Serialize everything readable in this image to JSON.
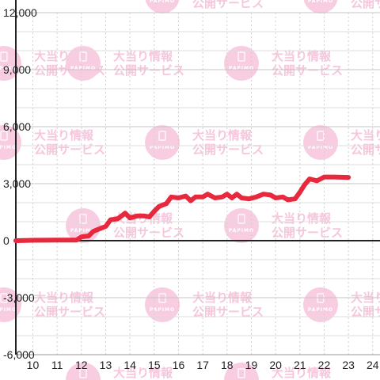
{
  "chart_data": {
    "type": "line",
    "title": "",
    "xlabel": "",
    "ylabel": "",
    "xlim": [
      9.3,
      24.3
    ],
    "ylim": [
      -6000,
      12000
    ],
    "x_ticks": [
      "10",
      "11",
      "12",
      "13",
      "14",
      "15",
      "16",
      "17",
      "18",
      "19",
      "20",
      "21",
      "22",
      "23",
      "24"
    ],
    "y_ticks": [
      "12,000",
      "9,000",
      "6,000",
      "3,000",
      "0",
      "-3,000",
      "-6,000"
    ],
    "grid": true,
    "colors": {
      "line": "#e8283c",
      "grid": "#d8d8d8",
      "axis": "#222222",
      "watermark": "#f9cde1"
    },
    "watermark": {
      "name": "PAPIMO",
      "line1": "大当り情報",
      "line2": "公開サービス",
      "sub": "PAPIMO"
    },
    "series": [
      {
        "values": [
          [
            9.3,
            0
          ],
          [
            10.0,
            20
          ],
          [
            11.0,
            30
          ],
          [
            11.8,
            30
          ],
          [
            12.0,
            200
          ],
          [
            12.3,
            250
          ],
          [
            12.5,
            500
          ],
          [
            12.8,
            650
          ],
          [
            13.0,
            750
          ],
          [
            13.2,
            1100
          ],
          [
            13.5,
            1150
          ],
          [
            13.8,
            1450
          ],
          [
            14.0,
            1200
          ],
          [
            14.3,
            1300
          ],
          [
            14.6,
            1300
          ],
          [
            14.8,
            1250
          ],
          [
            15.0,
            1550
          ],
          [
            15.2,
            1800
          ],
          [
            15.5,
            1950
          ],
          [
            15.7,
            2300
          ],
          [
            16.0,
            2250
          ],
          [
            16.3,
            2350
          ],
          [
            16.5,
            2100
          ],
          [
            16.7,
            2300
          ],
          [
            17.0,
            2300
          ],
          [
            17.2,
            2450
          ],
          [
            17.5,
            2250
          ],
          [
            17.8,
            2300
          ],
          [
            18.0,
            2450
          ],
          [
            18.2,
            2250
          ],
          [
            18.4,
            2450
          ],
          [
            18.6,
            2250
          ],
          [
            18.9,
            2200
          ],
          [
            19.2,
            2300
          ],
          [
            19.5,
            2450
          ],
          [
            19.8,
            2400
          ],
          [
            20.0,
            2250
          ],
          [
            20.3,
            2300
          ],
          [
            20.5,
            2150
          ],
          [
            20.8,
            2200
          ],
          [
            21.0,
            2550
          ],
          [
            21.2,
            2950
          ],
          [
            21.4,
            3250
          ],
          [
            21.7,
            3150
          ],
          [
            22.0,
            3350
          ],
          [
            22.4,
            3350
          ],
          [
            23.0,
            3330
          ]
        ]
      }
    ]
  }
}
